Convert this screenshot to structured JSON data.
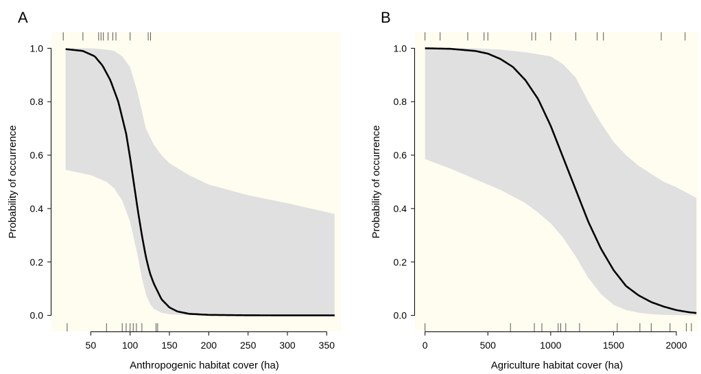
{
  "colors": {
    "plot_background": "#fffdf0",
    "ci_band": "#e0e0e0",
    "curve": "#000000",
    "rug": "#555555"
  },
  "chart_data": [
    {
      "type": "line",
      "panel": "A",
      "xlabel": "Anthropogenic habitat cover (ha)",
      "ylabel": "Probability of occurrence",
      "xlim": [
        0,
        368
      ],
      "ylim": [
        -0.06,
        1.06
      ],
      "xticks": [
        50,
        100,
        150,
        200,
        250,
        300,
        350
      ],
      "yticks": [
        0.0,
        0.2,
        0.4,
        0.6,
        0.8,
        1.0
      ],
      "ytick_labels": [
        "0.0",
        "0.2",
        "0.4",
        "0.6",
        "0.8",
        "1.0"
      ],
      "grid": false,
      "curve": {
        "x": [
          18,
          40,
          55,
          65,
          75,
          85,
          95,
          100,
          105,
          110,
          115,
          120,
          125,
          130,
          140,
          150,
          160,
          175,
          200,
          250,
          300,
          360
        ],
        "y": [
          0.997,
          0.99,
          0.97,
          0.935,
          0.88,
          0.8,
          0.68,
          0.59,
          0.49,
          0.39,
          0.3,
          0.22,
          0.16,
          0.12,
          0.06,
          0.03,
          0.015,
          0.006,
          0.002,
          0.0005,
          0.0002,
          0.0001
        ]
      },
      "ci_upper": {
        "x": [
          18,
          50,
          70,
          80,
          90,
          100,
          110,
          120,
          130,
          140,
          150,
          175,
          200,
          250,
          300,
          360
        ],
        "y": [
          1.0,
          1.0,
          0.995,
          0.99,
          0.97,
          0.93,
          0.83,
          0.7,
          0.64,
          0.6,
          0.57,
          0.525,
          0.49,
          0.45,
          0.42,
          0.38
        ]
      },
      "ci_lower": {
        "x": [
          18,
          50,
          70,
          80,
          90,
          100,
          110,
          115,
          120,
          125,
          130,
          140,
          150,
          175,
          200,
          250,
          300,
          360
        ],
        "y": [
          0.545,
          0.525,
          0.5,
          0.475,
          0.43,
          0.35,
          0.22,
          0.14,
          0.08,
          0.045,
          0.025,
          0.01,
          0.004,
          0.001,
          0.0,
          0.0,
          0.0,
          0.0
        ]
      },
      "rug_top": [
        15,
        40,
        60,
        63,
        66,
        72,
        78,
        82,
        100,
        123,
        126
      ],
      "rug_bottom": [
        20,
        70,
        90,
        95,
        100,
        104,
        108,
        115,
        133,
        135
      ]
    },
    {
      "type": "line",
      "panel": "B",
      "xlabel": "Agriculture habitat cover (ha)",
      "ylabel": "Probability of occurrence",
      "xlim": [
        -80,
        2180
      ],
      "ylim": [
        -0.06,
        1.06
      ],
      "xticks": [
        0,
        500,
        1000,
        1500,
        2000
      ],
      "yticks": [
        0.0,
        0.2,
        0.4,
        0.6,
        0.8,
        1.0
      ],
      "ytick_labels": [
        "0.0",
        "0.2",
        "0.4",
        "0.6",
        "0.8",
        "1.0"
      ],
      "grid": false,
      "curve": {
        "x": [
          0,
          200,
          400,
          500,
          600,
          700,
          800,
          900,
          1000,
          1100,
          1200,
          1300,
          1400,
          1500,
          1600,
          1700,
          1800,
          1900,
          2000,
          2100,
          2160
        ],
        "y": [
          1.0,
          0.998,
          0.99,
          0.98,
          0.96,
          0.93,
          0.88,
          0.81,
          0.71,
          0.59,
          0.47,
          0.35,
          0.25,
          0.17,
          0.11,
          0.075,
          0.05,
          0.033,
          0.02,
          0.012,
          0.009
        ]
      },
      "ci_upper": {
        "x": [
          0,
          400,
          600,
          800,
          1000,
          1100,
          1200,
          1300,
          1400,
          1500,
          1600,
          1700,
          1800,
          1900,
          2000,
          2160
        ],
        "y": [
          1.0,
          1.0,
          0.995,
          0.985,
          0.97,
          0.94,
          0.89,
          0.8,
          0.72,
          0.65,
          0.6,
          0.56,
          0.53,
          0.5,
          0.48,
          0.44
        ]
      },
      "ci_lower": {
        "x": [
          0,
          200,
          400,
          600,
          800,
          900,
          1000,
          1100,
          1200,
          1300,
          1400,
          1500,
          1600,
          1700,
          1800,
          1900,
          2000,
          2160
        ],
        "y": [
          0.585,
          0.55,
          0.51,
          0.47,
          0.42,
          0.385,
          0.345,
          0.29,
          0.22,
          0.14,
          0.08,
          0.04,
          0.02,
          0.01,
          0.005,
          0.002,
          0.001,
          0.0
        ]
      },
      "rug_top": [
        0,
        120,
        340,
        470,
        500,
        850,
        880,
        1000,
        1200,
        1370,
        1420,
        1880,
        2070
      ],
      "rug_bottom": [
        0,
        680,
        870,
        930,
        1060,
        1080,
        1120,
        1230,
        1530,
        1710,
        1800,
        1950,
        2080,
        2120
      ]
    }
  ]
}
